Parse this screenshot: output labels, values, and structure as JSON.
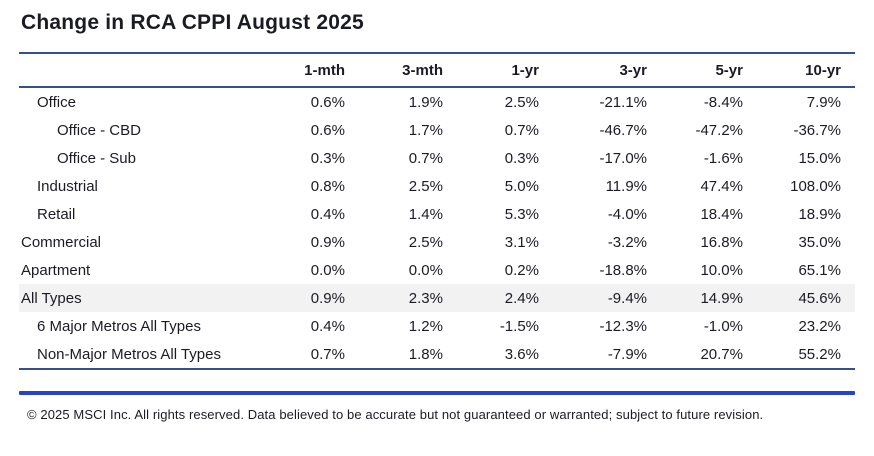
{
  "title": "Change in RCA CPPI August 2025",
  "colors": {
    "rule": "#35508e",
    "accent_bar": "#2743cb",
    "highlight_row_bg": "#f2f2f2",
    "text": "#1b1b24"
  },
  "table": {
    "columns": [
      "1-mth",
      "3-mth",
      "1-yr",
      "3-yr",
      "5-yr",
      "10-yr"
    ],
    "rows": [
      {
        "label": "Office",
        "indent": 1,
        "highlight": false,
        "values": [
          "0.6%",
          "1.9%",
          "2.5%",
          "-21.1%",
          "-8.4%",
          "7.9%"
        ]
      },
      {
        "label": "Office - CBD",
        "indent": 2,
        "highlight": false,
        "values": [
          "0.6%",
          "1.7%",
          "0.7%",
          "-46.7%",
          "-47.2%",
          "-36.7%"
        ]
      },
      {
        "label": "Office - Sub",
        "indent": 2,
        "highlight": false,
        "values": [
          "0.3%",
          "0.7%",
          "0.3%",
          "-17.0%",
          "-1.6%",
          "15.0%"
        ]
      },
      {
        "label": "Industrial",
        "indent": 1,
        "highlight": false,
        "values": [
          "0.8%",
          "2.5%",
          "5.0%",
          "11.9%",
          "47.4%",
          "108.0%"
        ]
      },
      {
        "label": "Retail",
        "indent": 1,
        "highlight": false,
        "values": [
          "0.4%",
          "1.4%",
          "5.3%",
          "-4.0%",
          "18.4%",
          "18.9%"
        ]
      },
      {
        "label": "Commercial",
        "indent": 0,
        "highlight": false,
        "values": [
          "0.9%",
          "2.5%",
          "3.1%",
          "-3.2%",
          "16.8%",
          "35.0%"
        ]
      },
      {
        "label": "Apartment",
        "indent": 0,
        "highlight": false,
        "values": [
          "0.0%",
          "0.0%",
          "0.2%",
          "-18.8%",
          "10.0%",
          "65.1%"
        ]
      },
      {
        "label": "All Types",
        "indent": 0,
        "highlight": true,
        "values": [
          "0.9%",
          "2.3%",
          "2.4%",
          "-9.4%",
          "14.9%",
          "45.6%"
        ]
      },
      {
        "label": "6 Major Metros All Types",
        "indent": 1,
        "highlight": false,
        "values": [
          "0.4%",
          "1.2%",
          "-1.5%",
          "-12.3%",
          "-1.0%",
          "23.2%"
        ]
      },
      {
        "label": "Non-Major Metros All Types",
        "indent": 1,
        "highlight": false,
        "values": [
          "0.7%",
          "1.8%",
          "3.6%",
          "-7.9%",
          "20.7%",
          "55.2%"
        ]
      }
    ]
  },
  "footer": "© 2025 MSCI Inc. All rights reserved. Data believed to be accurate but not guaranteed or warranted; subject to future revision.",
  "chart_data": {
    "type": "table",
    "title": "Change in RCA CPPI August 2025",
    "units": "percent",
    "columns": [
      "1-mth",
      "3-mth",
      "1-yr",
      "3-yr",
      "5-yr",
      "10-yr"
    ],
    "rows": [
      {
        "label": "Office",
        "values": [
          0.6,
          1.9,
          2.5,
          -21.1,
          -8.4,
          7.9
        ]
      },
      {
        "label": "Office - CBD",
        "values": [
          0.6,
          1.7,
          0.7,
          -46.7,
          -47.2,
          -36.7
        ]
      },
      {
        "label": "Office - Sub",
        "values": [
          0.3,
          0.7,
          0.3,
          -17.0,
          -1.6,
          15.0
        ]
      },
      {
        "label": "Industrial",
        "values": [
          0.8,
          2.5,
          5.0,
          11.9,
          47.4,
          108.0
        ]
      },
      {
        "label": "Retail",
        "values": [
          0.4,
          1.4,
          5.3,
          -4.0,
          18.4,
          18.9
        ]
      },
      {
        "label": "Commercial",
        "values": [
          0.9,
          2.5,
          3.1,
          -3.2,
          16.8,
          35.0
        ]
      },
      {
        "label": "Apartment",
        "values": [
          0.0,
          0.0,
          0.2,
          -18.8,
          10.0,
          65.1
        ]
      },
      {
        "label": "All Types",
        "values": [
          0.9,
          2.3,
          2.4,
          -9.4,
          14.9,
          45.6
        ]
      },
      {
        "label": "6 Major Metros All Types",
        "values": [
          0.4,
          1.2,
          -1.5,
          -12.3,
          -1.0,
          23.2
        ]
      },
      {
        "label": "Non-Major Metros All Types",
        "values": [
          0.7,
          1.8,
          3.6,
          -7.9,
          20.7,
          55.2
        ]
      }
    ]
  }
}
